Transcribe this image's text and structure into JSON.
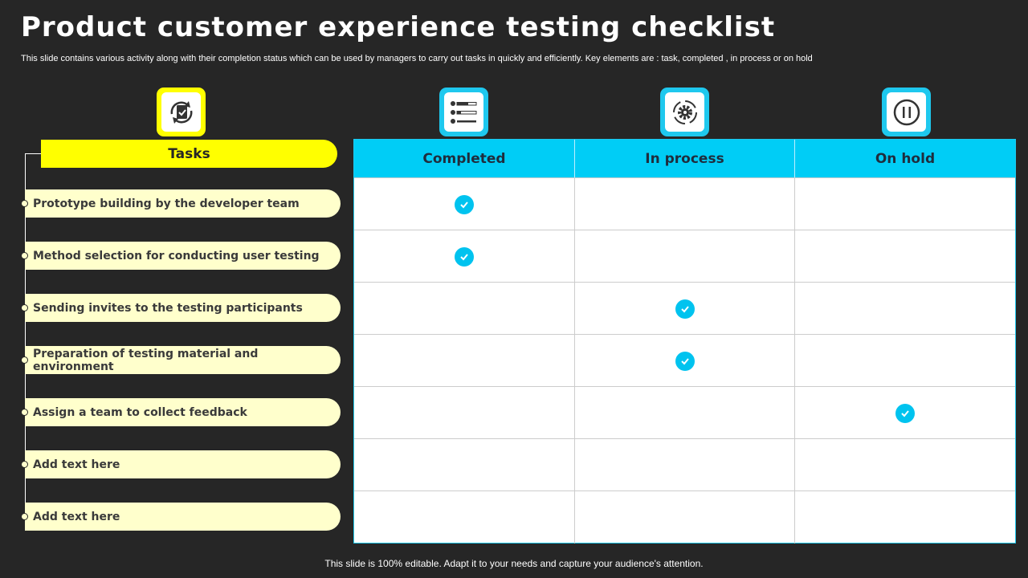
{
  "title": "Product customer experience testing checklist",
  "subtitle": "This slide contains various activity along with their completion status which can be used by managers to carry out tasks in quickly and efficiently. Key elements are : task, completed , in process or on hold",
  "footer": "This slide is 100% editable. Adapt it to your needs and capture your audience's attention.",
  "colors": {
    "background": "#262626",
    "tasks_accent": "#ffff00",
    "task_pill": "#ffffcc",
    "table_header": "#00cdf6",
    "check": "#00c3ef"
  },
  "tasks_header": "Tasks",
  "columns": [
    "Completed",
    "In process",
    "On hold"
  ],
  "icons": [
    "task-cycle-icon",
    "checklist-icon",
    "gear-cycle-icon",
    "pause-icon"
  ],
  "rows": [
    {
      "task": "Prototype building by the developer team",
      "status": "Completed"
    },
    {
      "task": "Method selection for conducting user testing",
      "status": "Completed"
    },
    {
      "task": "Sending invites to the testing participants",
      "status": "In process"
    },
    {
      "task": "Preparation of testing material and environment",
      "status": "In process"
    },
    {
      "task": "Assign a team to collect feedback",
      "status": "On hold"
    },
    {
      "task": "Add text here",
      "status": ""
    },
    {
      "task": "Add text here",
      "status": ""
    }
  ]
}
